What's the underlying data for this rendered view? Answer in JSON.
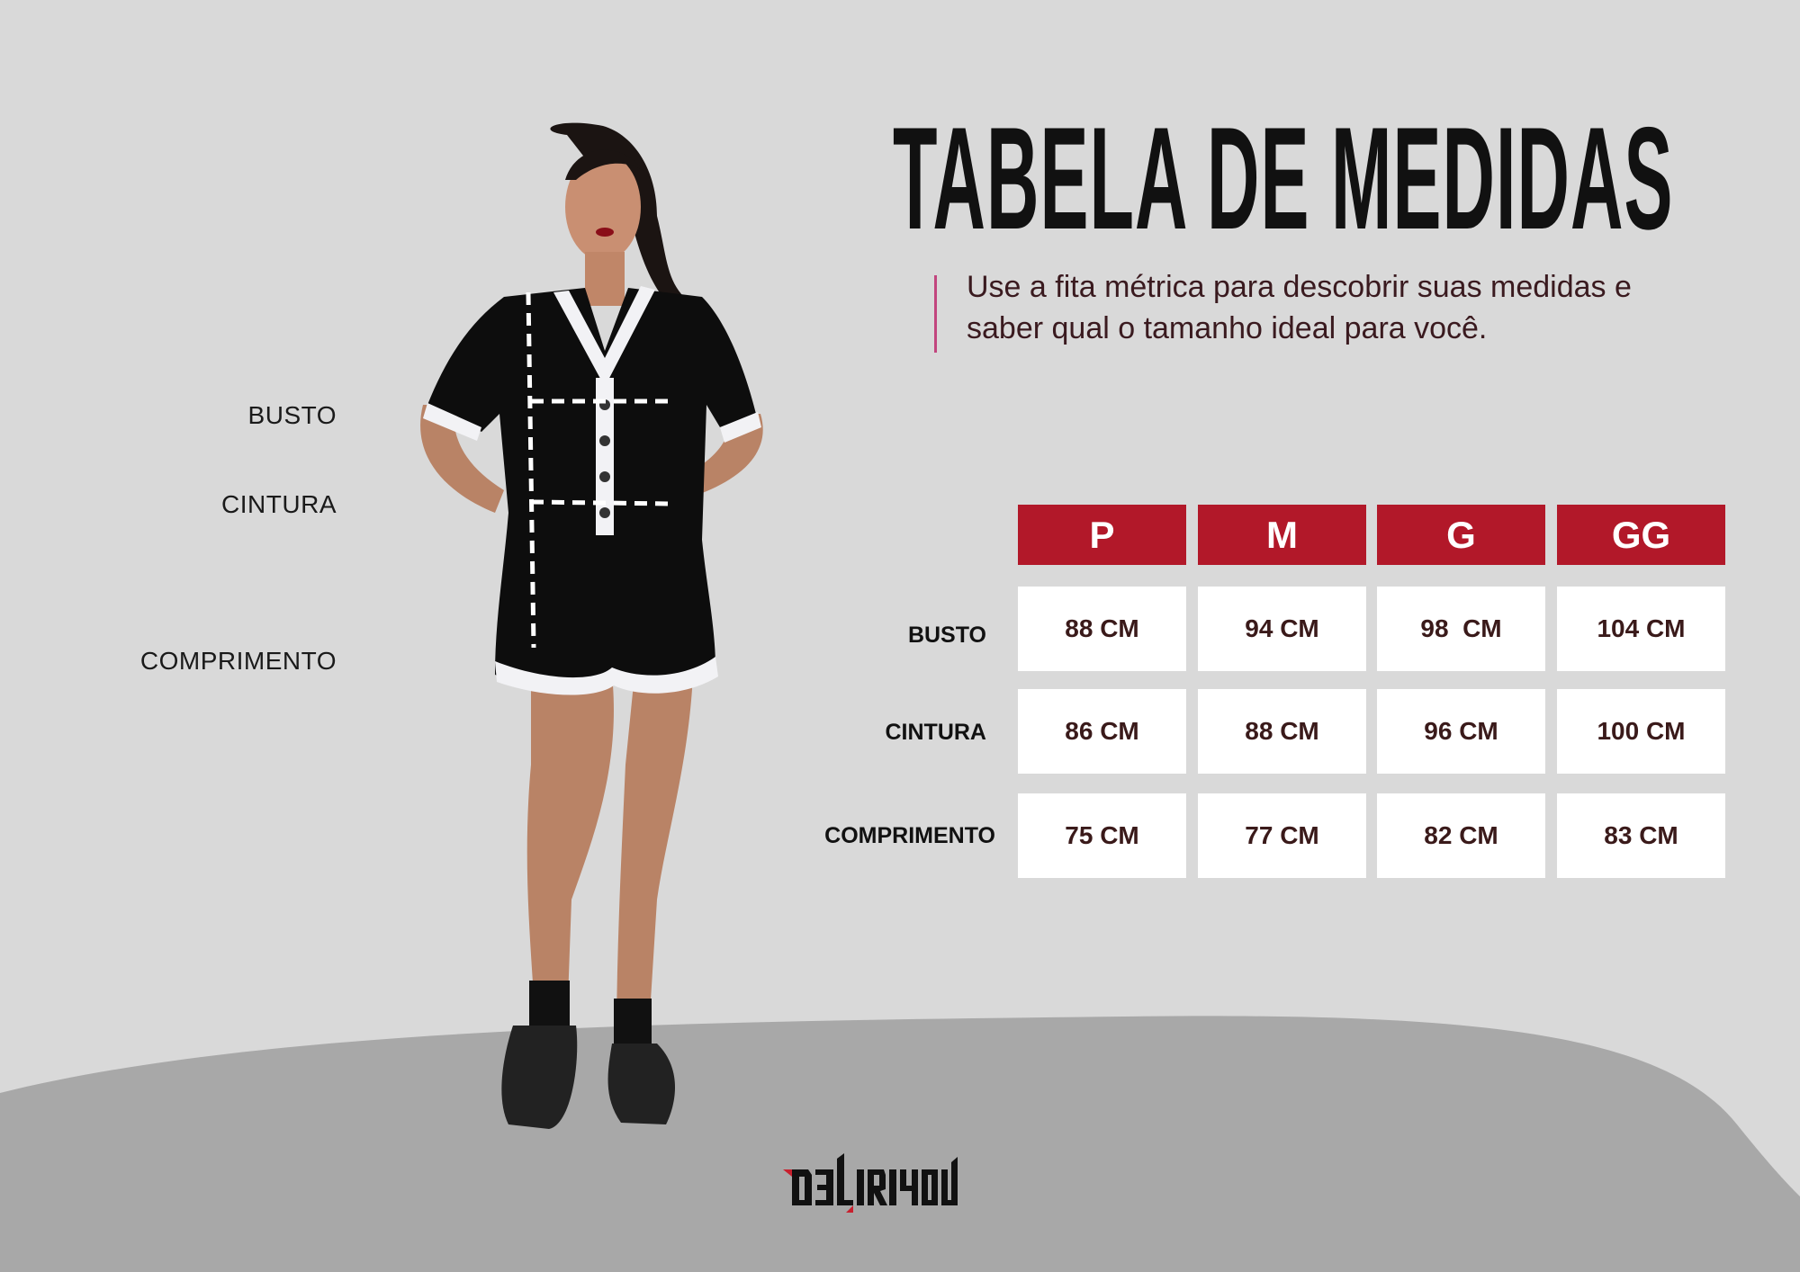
{
  "title": "TABELA DE MEDIDAS",
  "subtitle_lines": [
    "Use a fita métrica para descobrir suas medidas e",
    "saber qual o tamanho ideal para você."
  ],
  "model_labels": [
    "BUSTO",
    "CINTURA",
    "COMPRIMENTO"
  ],
  "table": {
    "sizes": [
      "P",
      "M",
      "G",
      "GG"
    ],
    "rows": [
      {
        "label": "BUSTO",
        "values": [
          "88 CM",
          "94 CM",
          "98  CM",
          "104 CM"
        ]
      },
      {
        "label": "CINTURA",
        "values": [
          "86 CM",
          "88 CM",
          "96 CM",
          "100 CM"
        ]
      },
      {
        "label": "COMPRIMENTO",
        "values": [
          "75 CM",
          "77 CM",
          "82 CM",
          "83 CM"
        ]
      }
    ]
  },
  "logo": "DELIRIYOU",
  "colors": {
    "background": "#d9d9d9",
    "ground": "#a8a8a8",
    "header": "#b21829",
    "accent": "#c2457e"
  }
}
